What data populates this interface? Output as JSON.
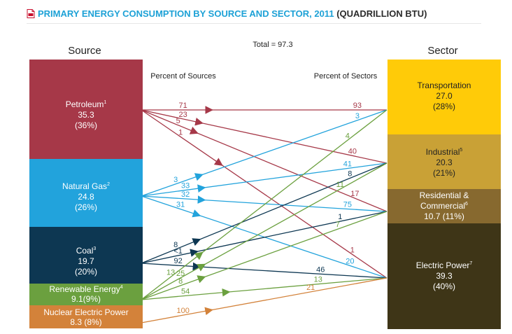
{
  "page": {
    "title": "PRIMARY ENERGY CONSUMPTION BY SOURCE AND SECTOR, 2011",
    "title_units": "(QUADRILLION BTU)"
  },
  "chart_data": {
    "type": "flow",
    "total_label": "Total = 97.3",
    "source_heading": "Source",
    "sector_heading": "Sector",
    "left_caption": "Percent of Sources",
    "right_caption": "Percent of Sectors",
    "sources": [
      {
        "id": "petroleum",
        "name": "Petroleum",
        "sup": "1",
        "value": "35.3",
        "pct": "(36%)",
        "color": "#a63848"
      },
      {
        "id": "natural-gas",
        "name": "Natural Gas",
        "sup": "2",
        "value": "24.8",
        "pct": "(26%)",
        "color": "#22a3dc"
      },
      {
        "id": "coal",
        "name": "Coal",
        "sup": "3",
        "value": "19.7",
        "pct": "(20%)",
        "color": "#0d3752"
      },
      {
        "id": "renewable",
        "name": "Renewable Energy",
        "sup": "4",
        "value": "9.1(9%)",
        "pct": "",
        "color": "#6ba03f"
      },
      {
        "id": "nuclear",
        "name": "Nuclear Electric Power",
        "sup": "",
        "value": "8.3 (8%)",
        "pct": "",
        "color": "#d3823a"
      }
    ],
    "sectors": [
      {
        "id": "transportation",
        "name": "Transportation",
        "name2": "",
        "sup": "",
        "value": "27.0",
        "pct": "(28%)",
        "color": "#ffcb08",
        "text_color": "#222222"
      },
      {
        "id": "industrial",
        "name": "Industrial",
        "name2": "",
        "sup": "5",
        "value": "20.3",
        "pct": "(21%)",
        "color": "#c9a136",
        "text_color": "#222222"
      },
      {
        "id": "residential-commercial",
        "name": "Residential &",
        "name2": "Commercial",
        "sup": "6",
        "value": "10.7 (11%)",
        "pct": "",
        "color": "#87692f",
        "text_color": "#ffffff"
      },
      {
        "id": "electric-power",
        "name": "Electric Power",
        "name2": "",
        "sup": "7",
        "value": "39.3",
        "pct": "(40%)",
        "color": "#3e3517",
        "text_color": "#ffffff"
      }
    ],
    "flows": [
      {
        "source": "petroleum",
        "sector": "transportation",
        "pct_of_source": "71",
        "pct_of_sector": "93"
      },
      {
        "source": "petroleum",
        "sector": "industrial",
        "pct_of_source": "23",
        "pct_of_sector": "40"
      },
      {
        "source": "petroleum",
        "sector": "residential-commercial",
        "pct_of_source": "5",
        "pct_of_sector": "17"
      },
      {
        "source": "petroleum",
        "sector": "electric-power",
        "pct_of_source": "1",
        "pct_of_sector": "1"
      },
      {
        "source": "natural-gas",
        "sector": "transportation",
        "pct_of_source": "3",
        "pct_of_sector": "3"
      },
      {
        "source": "natural-gas",
        "sector": "industrial",
        "pct_of_source": "33",
        "pct_of_sector": "41"
      },
      {
        "source": "natural-gas",
        "sector": "residential-commercial",
        "pct_of_source": "32",
        "pct_of_sector": "75"
      },
      {
        "source": "natural-gas",
        "sector": "electric-power",
        "pct_of_source": "31",
        "pct_of_sector": "20"
      },
      {
        "source": "coal",
        "sector": "industrial",
        "pct_of_source": "8",
        "pct_of_sector": "8"
      },
      {
        "source": "coal",
        "sector": "residential-commercial",
        "pct_of_source": "<1",
        "pct_of_sector": "1"
      },
      {
        "source": "coal",
        "sector": "electric-power",
        "pct_of_source": "92",
        "pct_of_sector": "46"
      },
      {
        "source": "renewable",
        "sector": "transportation",
        "pct_of_source": "13",
        "pct_of_sector": "4"
      },
      {
        "source": "renewable",
        "sector": "industrial",
        "pct_of_source": "25",
        "pct_of_sector": "11"
      },
      {
        "source": "renewable",
        "sector": "residential-commercial",
        "pct_of_source": "8",
        "pct_of_sector": "7"
      },
      {
        "source": "renewable",
        "sector": "electric-power",
        "pct_of_source": "54",
        "pct_of_sector": "13"
      },
      {
        "source": "nuclear",
        "sector": "electric-power",
        "pct_of_source": "100",
        "pct_of_sector": "21"
      }
    ]
  }
}
